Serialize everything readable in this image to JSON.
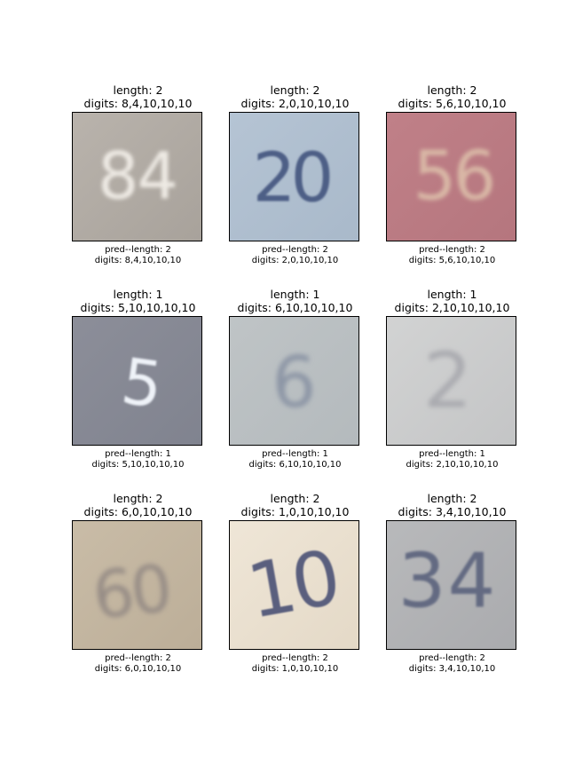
{
  "panels": [
    {
      "title_length": "length: 2",
      "title_digits": "digits: 8,4,10,10,10",
      "pred_length": "pred--length: 2",
      "pred_digits": "digits: 8,4,10,10,10",
      "image_text": "84",
      "bg": "#b9b3ac",
      "bg2": "#a8a29b",
      "fg": "#eeeae4"
    },
    {
      "title_length": "length: 2",
      "title_digits": "digits: 2,0,10,10,10",
      "pred_length": "pred--length: 2",
      "pred_digits": "digits: 2,0,10,10,10",
      "image_text": "20",
      "bg": "#b5c4d4",
      "bg2": "#a9b9ca",
      "fg": "#4e5f86"
    },
    {
      "title_length": "length: 2",
      "title_digits": "digits: 5,6,10,10,10",
      "pred_length": "pred--length: 2",
      "pred_digits": "digits: 5,6,10,10,10",
      "image_text": "56",
      "bg": "#c08088",
      "bg2": "#b5767e",
      "fg": "#d9b8a6"
    },
    {
      "title_length": "length: 1",
      "title_digits": "digits: 5,10,10,10,10",
      "pred_length": "pred--length: 1",
      "pred_digits": "digits: 5,10,10,10,10",
      "image_text": "5",
      "bg": "#8c8e99",
      "bg2": "#80838f",
      "fg": "#eef2f8"
    },
    {
      "title_length": "length: 1",
      "title_digits": "digits: 6,10,10,10,10",
      "pred_length": "pred--length: 1",
      "pred_digits": "digits: 6,10,10,10,10",
      "image_text": "6",
      "bg": "#bfc4c6",
      "bg2": "#b4babd",
      "fg": "#8d96a6"
    },
    {
      "title_length": "length: 1",
      "title_digits": "digits: 2,10,10,10,10",
      "pred_length": "pred--length: 1",
      "pred_digits": "digits: 2,10,10,10,10",
      "image_text": "2",
      "bg": "#d2d3d3",
      "bg2": "#c4c5c6",
      "fg": "#aaabb0"
    },
    {
      "title_length": "length: 2",
      "title_digits": "digits: 6,0,10,10,10",
      "pred_length": "pred--length: 2",
      "pred_digits": "digits: 6,0,10,10,10",
      "image_text": "60",
      "bg": "#c9bca7",
      "bg2": "#bcae98",
      "fg": "#978d86"
    },
    {
      "title_length": "length: 2",
      "title_digits": "digits: 1,0,10,10,10",
      "pred_length": "pred--length: 2",
      "pred_digits": "digits: 1,0,10,10,10",
      "image_text": "10",
      "bg": "#efe6d7",
      "bg2": "#e4d9c7",
      "fg": "#5a5f7e"
    },
    {
      "title_length": "length: 2",
      "title_digits": "digits: 3,4,10,10,10",
      "pred_length": "pred--length: 2",
      "pred_digits": "digits: 3,4,10,10,10",
      "image_text": "34",
      "bg": "#b8b9bb",
      "bg2": "#aaabae",
      "fg": "#636a82"
    }
  ]
}
